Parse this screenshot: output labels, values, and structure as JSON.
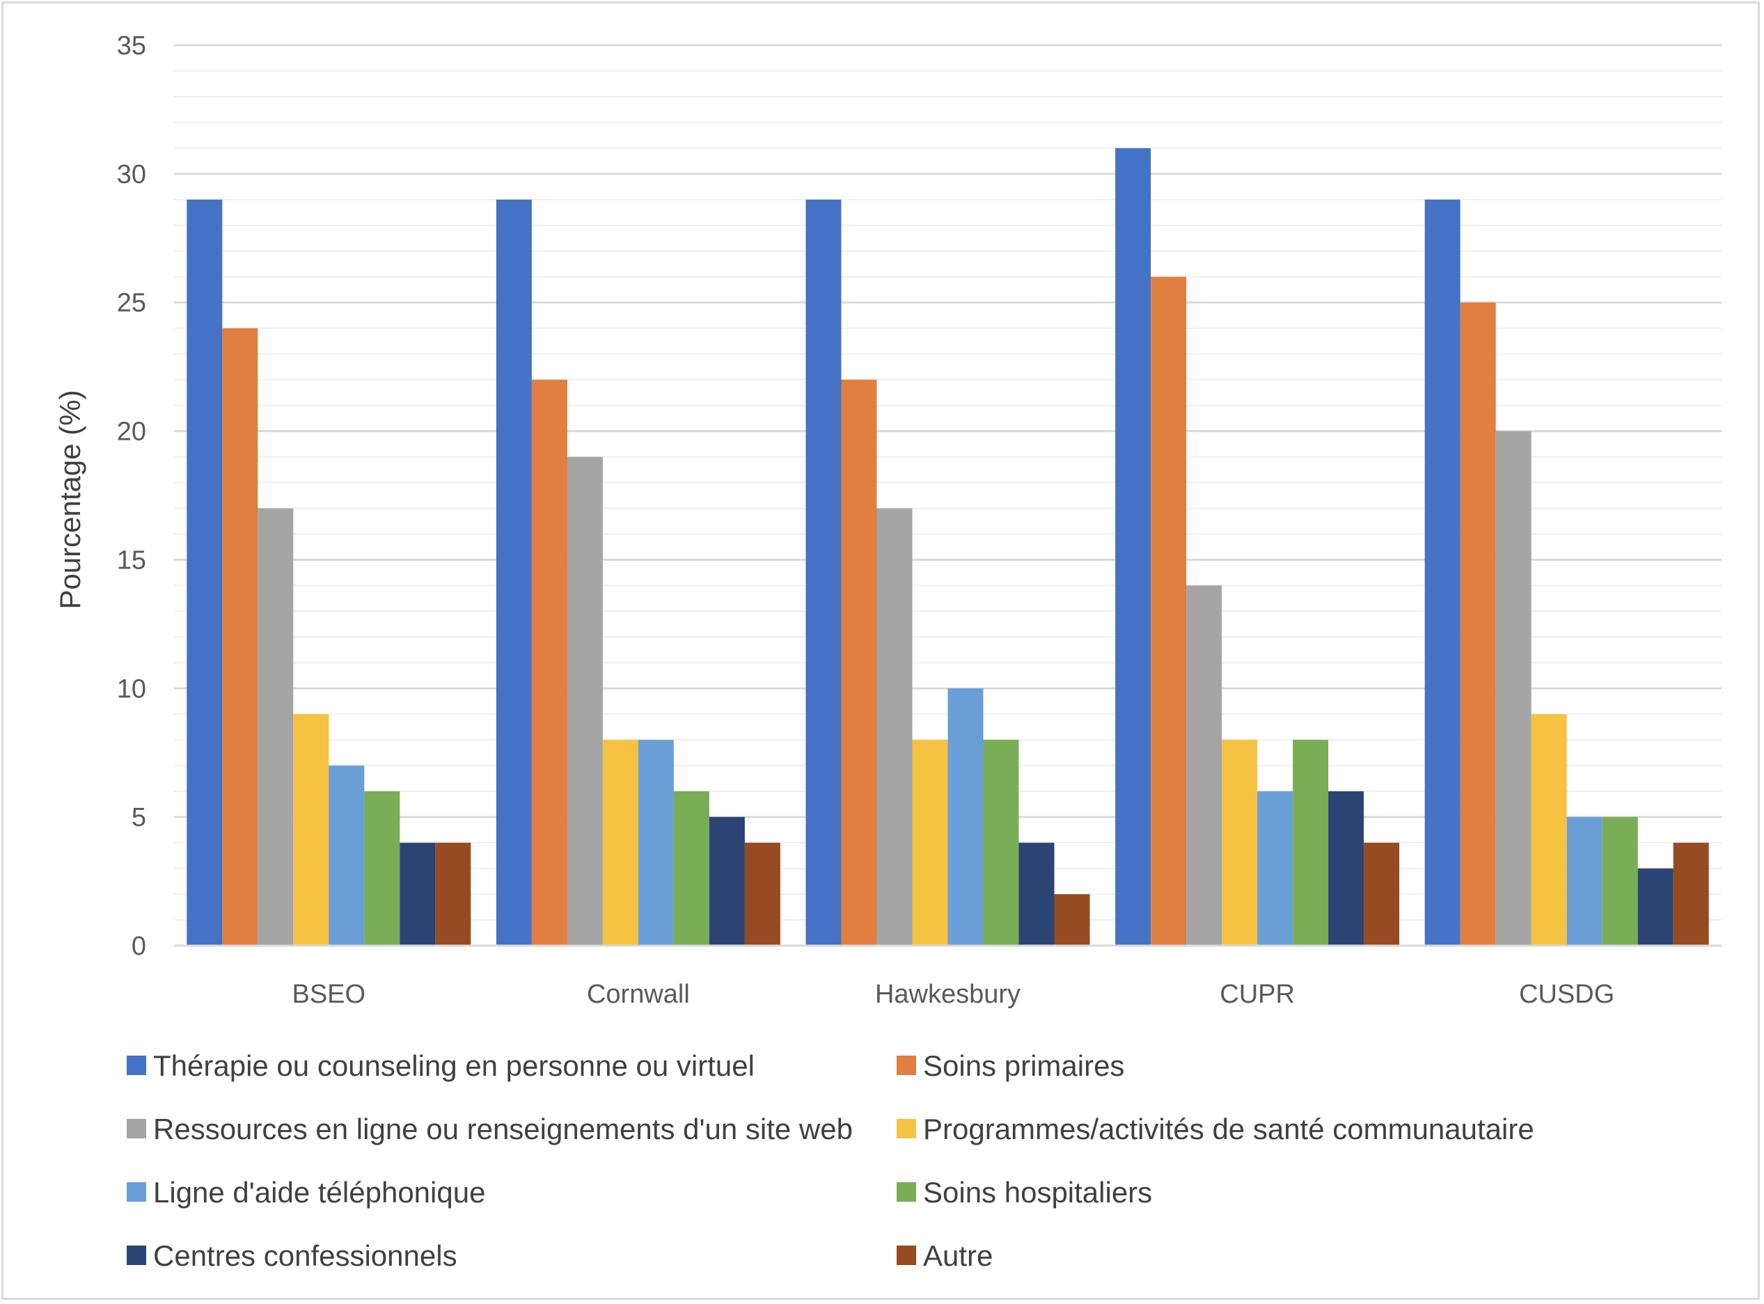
{
  "chart_data": {
    "type": "bar",
    "title": "",
    "xlabel": "",
    "ylabel": "Pourcentage (%)",
    "ylim": [
      0,
      35
    ],
    "yticks": [
      0,
      5,
      10,
      15,
      20,
      25,
      30,
      35
    ],
    "categories": [
      "BSEO",
      "Cornwall",
      "Hawkesbury",
      "CUPR",
      "CUSDG"
    ],
    "legend_position": "bottom",
    "series": [
      {
        "name": "Thérapie ou counseling en personne ou virtuel",
        "color": "#4472C4",
        "values": [
          29,
          29,
          29,
          31,
          29
        ]
      },
      {
        "name": "Soins primaires",
        "color": "#E07F40",
        "values": [
          24,
          22,
          22,
          26,
          25
        ]
      },
      {
        "name": "Ressources en ligne ou renseignements d'un site web",
        "color": "#A5A5A5",
        "values": [
          17,
          19,
          17,
          14,
          20
        ]
      },
      {
        "name": "Programmes/activités de santé communautaire",
        "color": "#F5C242",
        "values": [
          9,
          8,
          8,
          8,
          9
        ]
      },
      {
        "name": "Ligne d'aide téléphonique",
        "color": "#6A9ED6",
        "values": [
          7,
          8,
          10,
          6,
          5
        ]
      },
      {
        "name": "Soins hospitaliers",
        "color": "#79AD56",
        "values": [
          6,
          6,
          8,
          8,
          5
        ]
      },
      {
        "name": "Centres confessionnels",
        "color": "#2B4474",
        "values": [
          4,
          5,
          4,
          6,
          3
        ]
      },
      {
        "name": "Autre",
        "color": "#974B22",
        "values": [
          4,
          4,
          2,
          4,
          4
        ]
      }
    ]
  }
}
